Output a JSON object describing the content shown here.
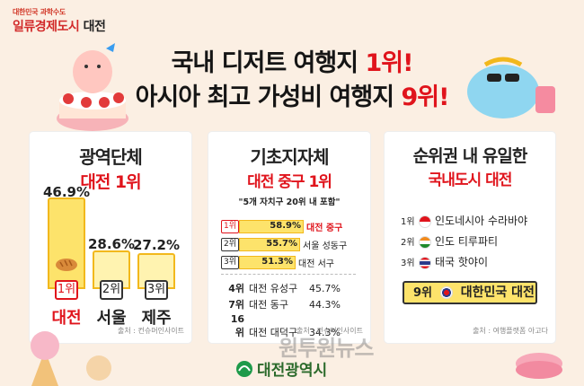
{
  "logo": {
    "small": "대한민국 과학수도",
    "main_red": "일류경제도시",
    "main_dark": "대전"
  },
  "headline": {
    "line1_pre": "국내 디저트 여행지 ",
    "line1_hl": "1위!",
    "line2_pre": "아시아 최고 가성비 여행지 ",
    "line2_hl": "9위!"
  },
  "panel1": {
    "title": "광역단체",
    "subtitle": "대전 1위",
    "source": "출처 : 컨슈머인사이트",
    "items": [
      {
        "rank": "1위",
        "city": "대전",
        "pct": "46.9%",
        "value": 46.9
      },
      {
        "rank": "2위",
        "city": "서울",
        "pct": "28.6%",
        "value": 28.6
      },
      {
        "rank": "3위",
        "city": "제주",
        "pct": "27.2%",
        "value": 27.2
      }
    ]
  },
  "panel2": {
    "title": "기초지자체",
    "subtitle": "대전 중구 1위",
    "note": "\"5개 자치구 20위 내 포함\"",
    "source": "출처 : 컨슈머인사이트",
    "top": [
      {
        "rank": "1위",
        "pct": "58.9%",
        "value": 58.9,
        "name": "대전 중구"
      },
      {
        "rank": "2위",
        "pct": "55.7%",
        "value": 55.7,
        "name": "서울 성동구"
      },
      {
        "rank": "3위",
        "pct": "51.3%",
        "value": 51.3,
        "name": "대전 서구"
      }
    ],
    "others": [
      {
        "rank": "4위",
        "name": "대전 유성구",
        "pct": "45.7%"
      },
      {
        "rank": "7위",
        "name": "대전 동구",
        "pct": "44.3%"
      },
      {
        "rank": "16위",
        "name": "대전 대덕구",
        "pct": "34.3%"
      }
    ]
  },
  "panel3": {
    "title": "순위권 내 유일한",
    "subtitle": "국내도시 대전",
    "source": "출처 : 여행플랫폼 아고다",
    "items": [
      {
        "rank": "1위",
        "name": "인도네시아 수라바야",
        "flag": "indonesia"
      },
      {
        "rank": "2위",
        "name": "인도 티루파티",
        "flag": "india"
      },
      {
        "rank": "3위",
        "name": "태국 핫야이",
        "flag": "thailand"
      }
    ],
    "highlight": {
      "rank": "9위",
      "name": "대한민국 대전",
      "flag": "korea"
    }
  },
  "footer": {
    "logo_text": "대전광역시",
    "watermark": "원투원뉴스"
  },
  "colors": {
    "accent_red": "#e0141c",
    "bar_yellow": "#fde36b",
    "bar_border": "#f2b81c",
    "background": "#fbefe3"
  }
}
